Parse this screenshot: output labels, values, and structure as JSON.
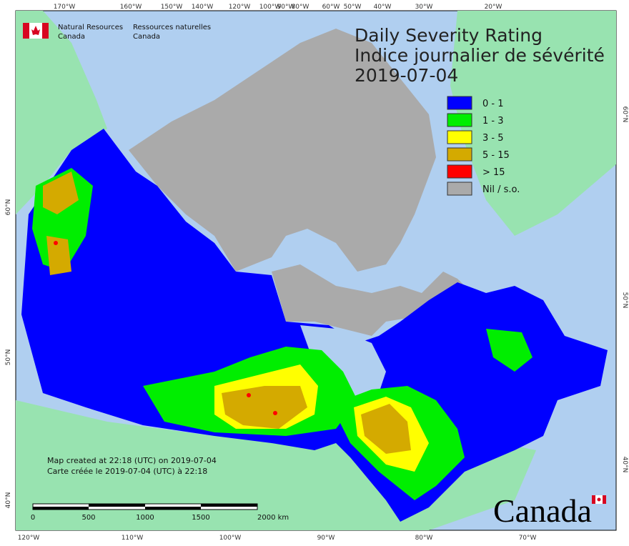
{
  "header": {
    "agency_en": [
      "Natural Resources",
      "Canada"
    ],
    "agency_fr": [
      "Ressources naturelles",
      "Canada"
    ]
  },
  "title": [
    "Daily Severity Rating",
    "Indice journalier de sévérité",
    "2019-07-04"
  ],
  "legend": [
    {
      "label": "0 - 1",
      "color": "#0000ff"
    },
    {
      "label": "1 - 3",
      "color": "#00ee00"
    },
    {
      "label": "3 - 5",
      "color": "#ffff00"
    },
    {
      "label": "5 - 15",
      "color": "#d4aa00"
    },
    {
      "label": "> 15",
      "color": "#ff0000"
    },
    {
      "label": "Nil / s.o.",
      "color": "#aaaaaa"
    }
  ],
  "graticule": {
    "top": [
      "170°W",
      "160°W",
      "150°W",
      "140°W",
      "120°W",
      "100°W",
      "90°W",
      "80°W",
      "60°W",
      "50°W",
      "40°W",
      "30°W",
      "20°W"
    ],
    "bottom": [
      "120°W",
      "110°W",
      "100°W",
      "90°W",
      "80°W",
      "70°W"
    ],
    "left": [
      "60°N",
      "50°N",
      "40°N"
    ],
    "right": [
      "60°N",
      "50°N",
      "40°N"
    ]
  },
  "notes": [
    "Map created at 22:18 (UTC) on 2019-07-04",
    "Carte créée le 2019-07-04 (UTC) à 22:18"
  ],
  "scale_bar": [
    "0",
    "500",
    "1000",
    "1500",
    "2000 km"
  ],
  "wordmark": "Canada"
}
